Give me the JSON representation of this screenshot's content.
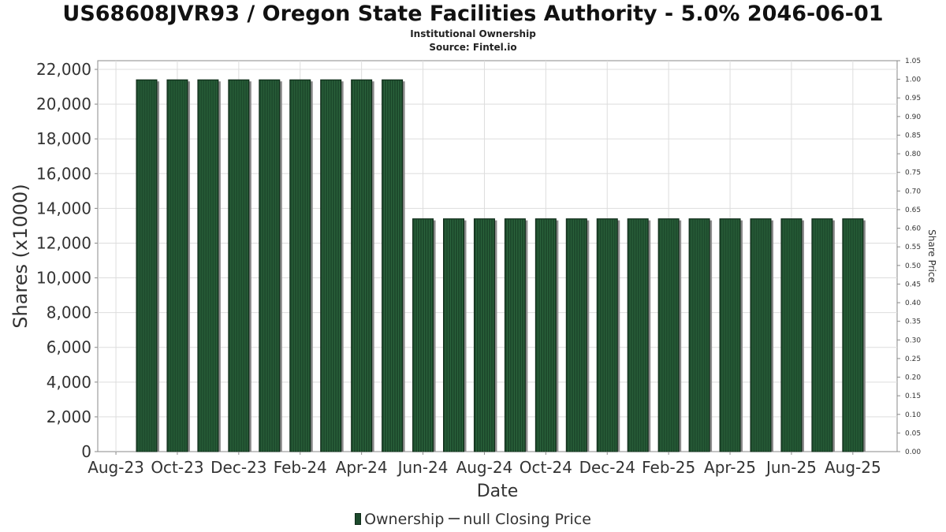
{
  "header": {
    "title": "US68608JVR93 / Oregon State Facilities Authority - 5.0% 2046-06-01",
    "subtitle": "Institutional Ownership",
    "source": "Source: Fintel.io"
  },
  "legend": {
    "ownership_label": "Ownership",
    "price_label": "null Closing Price"
  },
  "colors": {
    "bar_fill": "#1d4a2c",
    "bar_edge": "#0f2a18",
    "bar_stripe": "#2f6a40",
    "bar_shadow": "#8a8a8a",
    "grid": "#dddddd",
    "axis": "#888888"
  },
  "chart_data": {
    "type": "bar",
    "title": "US68608JVR93 / Oregon State Facilities Authority - 5.0% 2046-06-01",
    "xlabel": "Date",
    "ylabel": "Shares (x1000)",
    "y2label": "Share Price",
    "ylim": [
      0,
      22500
    ],
    "y2lim": [
      0,
      1.05
    ],
    "grid": true,
    "legend_position": "bottom",
    "x_tick_labels": [
      "Aug-23",
      "Oct-23",
      "Dec-23",
      "Feb-24",
      "Apr-24",
      "Jun-24",
      "Aug-24",
      "Oct-24",
      "Dec-24",
      "Feb-25",
      "Apr-25",
      "Jun-25",
      "Aug-25"
    ],
    "y_ticks": [
      "0",
      "2,000",
      "4,000",
      "6,000",
      "8,000",
      "10,000",
      "12,000",
      "14,000",
      "16,000",
      "18,000",
      "20,000",
      "22,000"
    ],
    "y2_ticks": [
      "0.00",
      "0.05",
      "0.10",
      "0.15",
      "0.20",
      "0.25",
      "0.30",
      "0.35",
      "0.40",
      "0.45",
      "0.50",
      "0.55",
      "0.60",
      "0.65",
      "0.70",
      "0.75",
      "0.80",
      "0.85",
      "0.90",
      "0.95",
      "1.00",
      "1.05"
    ],
    "series": [
      {
        "name": "Ownership",
        "values": [
          21400,
          21400,
          21400,
          21400,
          21400,
          21400,
          21400,
          21400,
          21400,
          13400,
          13400,
          13400,
          13400,
          13400,
          13400,
          13400,
          13400,
          13400,
          13400,
          13400,
          13400,
          13400,
          13400,
          13400
        ]
      }
    ]
  }
}
